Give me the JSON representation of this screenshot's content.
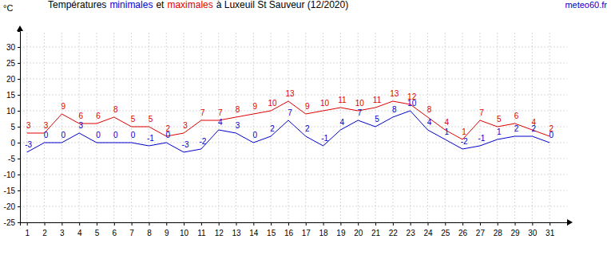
{
  "chart_data": {
    "type": "line",
    "title": [
      "Températures",
      "et",
      "à Luxeuil St Sauveur (12/2020)"
    ],
    "source": "meteo60.fr",
    "y_label": "°C",
    "x": [
      1,
      2,
      3,
      4,
      5,
      6,
      7,
      8,
      9,
      10,
      11,
      12,
      13,
      14,
      15,
      16,
      17,
      18,
      19,
      20,
      21,
      22,
      23,
      24,
      25,
      26,
      27,
      28,
      29,
      30,
      31
    ],
    "series": [
      {
        "name": "minimales",
        "color": "#0000cc",
        "values": [
          -3,
          0,
          0,
          3,
          0,
          0,
          0,
          -1,
          0,
          -3,
          -2,
          4,
          3,
          0,
          2,
          7,
          2,
          -1,
          4,
          7,
          5,
          8,
          10,
          4,
          1,
          -2,
          -1,
          1,
          2,
          2,
          0
        ]
      },
      {
        "name": "maximales",
        "color": "#dd0000",
        "values": [
          3,
          3,
          9,
          6,
          6,
          8,
          5,
          5,
          2,
          3,
          7,
          7,
          8,
          9,
          10,
          13,
          9,
          10,
          11,
          10,
          11,
          13,
          12,
          8,
          4,
          1,
          7,
          5,
          6,
          4,
          2
        ]
      }
    ],
    "xlim": [
      0.6,
      32
    ],
    "xticks": [
      1,
      2,
      3,
      4,
      5,
      6,
      7,
      8,
      9,
      10,
      11,
      12,
      13,
      14,
      15,
      16,
      17,
      18,
      19,
      20,
      21,
      22,
      23,
      24,
      25,
      26,
      27,
      28,
      29,
      30,
      31
    ],
    "ylim": [
      -25,
      35
    ],
    "yticks": [
      -25,
      -20,
      -15,
      -10,
      -5,
      0,
      5,
      10,
      15,
      20,
      25,
      30
    ],
    "grid": true,
    "data_labels": true
  }
}
